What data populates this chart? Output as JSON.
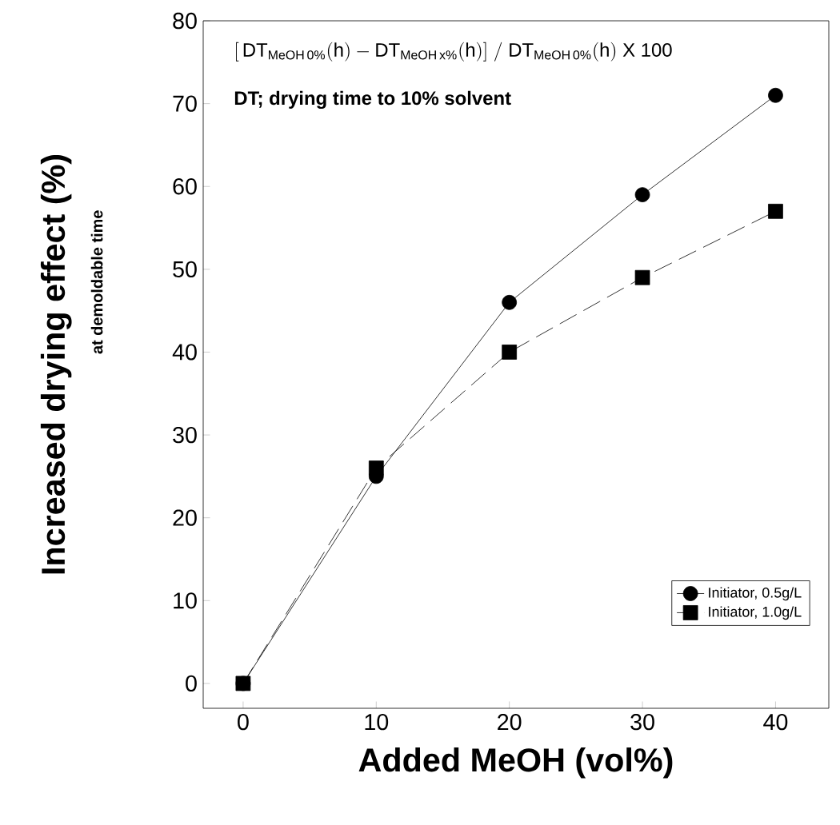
{
  "chart_data": {
    "type": "line",
    "xlabel": "Added MeOH (vol%)",
    "ylabel": "Increased drying effect (%)",
    "annotations": [
      "\\mathrm{[\\,DT_{MeOH\\,0\\%}(h) - DT_{MeOH\\,x\\%}(h)]\\ /\\ DT_{MeOH\\,0\\%}(h)\\ X\\ 100}",
      "DT; drying time to 10% solvent",
      "at demoldable time"
    ],
    "x": [
      0,
      10,
      20,
      30,
      40
    ],
    "series": [
      {
        "name": "Initiator, 0.5g/L",
        "color": "#000000",
        "values": [
          0,
          25,
          46,
          59,
          71
        ],
        "marker": "circle",
        "line_style": "solid"
      },
      {
        "name": "Initiator, 1.0g/L",
        "color": "#000000",
        "values": [
          0,
          26,
          40,
          49,
          57
        ],
        "marker": "square",
        "line_style": "dashed"
      }
    ],
    "xlim": [
      -3,
      44
    ],
    "ylim": [
      -3,
      80
    ],
    "xticks": [
      0,
      10,
      20,
      30,
      40
    ],
    "yticks": [
      0,
      10,
      20,
      30,
      40,
      50,
      60,
      70,
      80
    ],
    "grid": false,
    "legend": "bottom right"
  }
}
